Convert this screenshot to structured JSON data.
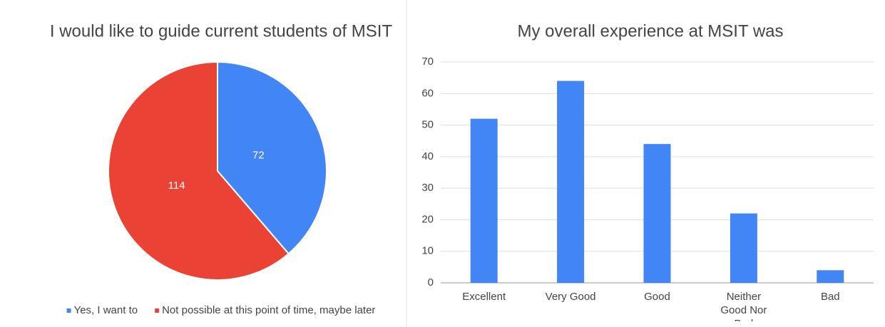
{
  "chart_data": [
    {
      "type": "pie",
      "title": "I would like to guide current students of MSIT",
      "categories": [
        "Yes, I want to",
        "Not possible at this point of time, maybe later"
      ],
      "values": [
        72,
        114
      ],
      "colors": [
        "#4285f4",
        "#ea4335"
      ],
      "legend": "bottom"
    },
    {
      "type": "bar",
      "title": "My overall experience at MSIT was",
      "categories": [
        "Excellent",
        "Very Good",
        "Good",
        "Neither Good Nor Bad",
        "Bad"
      ],
      "values": [
        52,
        64,
        44,
        22,
        4
      ],
      "color": "#4285f4",
      "ylim": [
        0,
        70
      ],
      "yticks": [
        0,
        10,
        20,
        30,
        40,
        50,
        60,
        70
      ],
      "grid": true
    }
  ]
}
